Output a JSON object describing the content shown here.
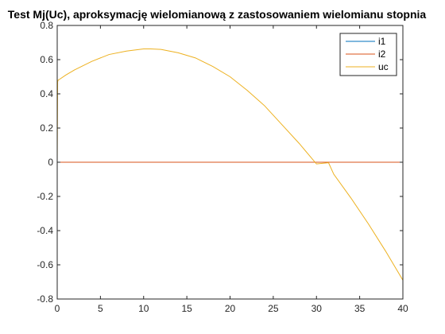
{
  "chart_data": {
    "type": "line",
    "title": "Test Mj(Uc), aproksymację wielomianową z zastosowaniem wielomianu stopnia",
    "xlabel": "",
    "ylabel": "",
    "xlim": [
      0,
      40
    ],
    "ylim": [
      -0.8,
      0.8
    ],
    "xticks": [
      0,
      5,
      10,
      15,
      20,
      25,
      30,
      35,
      40
    ],
    "yticks": [
      -0.8,
      -0.6,
      -0.4,
      -0.2,
      0,
      0.2,
      0.4,
      0.6,
      0.8
    ],
    "xtick_labels": [
      "0",
      "5",
      "10",
      "15",
      "20",
      "25",
      "30",
      "35",
      "40"
    ],
    "ytick_labels": [
      "-0.8",
      "-0.6",
      "-0.4",
      "-0.2",
      "0",
      "0.2",
      "0.4",
      "0.6",
      "0.8"
    ],
    "grid": false,
    "legend_position": "top-right",
    "series": [
      {
        "name": "i1",
        "color": "#0072BD",
        "x": [
          0,
          5,
          10,
          15,
          20,
          25,
          30,
          35,
          40
        ],
        "y": [
          0,
          0,
          0,
          0,
          0,
          0,
          0,
          0,
          0
        ]
      },
      {
        "name": "i2",
        "color": "#D95319",
        "x": [
          0,
          5,
          10,
          15,
          20,
          25,
          30,
          35,
          40
        ],
        "y": [
          0,
          0,
          0,
          0,
          0,
          0,
          0,
          0,
          0
        ]
      },
      {
        "name": "uc",
        "color": "#EDB120",
        "x": [
          0,
          0.05,
          0.1,
          0.3,
          1,
          2,
          4,
          6,
          8,
          10,
          10.8,
          12,
          14,
          16,
          18,
          20,
          22,
          24,
          26,
          28,
          30,
          31.4,
          32,
          34,
          36,
          38,
          40
        ],
        "y": [
          0,
          0.47,
          0.48,
          0.486,
          0.51,
          0.54,
          0.59,
          0.63,
          0.65,
          0.663,
          0.663,
          0.66,
          0.64,
          0.61,
          0.56,
          0.5,
          0.42,
          0.33,
          0.22,
          0.11,
          -0.01,
          -0.003,
          -0.07,
          -0.21,
          -0.36,
          -0.52,
          -0.69
        ]
      }
    ]
  }
}
